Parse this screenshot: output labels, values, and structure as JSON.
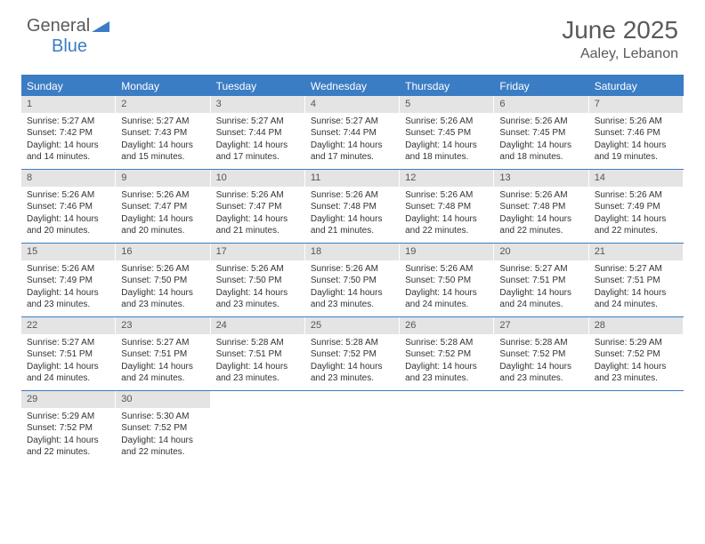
{
  "logo": {
    "general": "General",
    "blue": "Blue"
  },
  "title": "June 2025",
  "location": "Aaley, Lebanon",
  "colors": {
    "header_blue": "#3b7dc4",
    "daynum_bg": "#e4e4e4",
    "text_gray": "#5a5a5a"
  },
  "weekdays": [
    "Sunday",
    "Monday",
    "Tuesday",
    "Wednesday",
    "Thursday",
    "Friday",
    "Saturday"
  ],
  "weeks": [
    [
      {
        "n": "1",
        "sr": "Sunrise: 5:27 AM",
        "ss": "Sunset: 7:42 PM",
        "dl": "Daylight: 14 hours and 14 minutes."
      },
      {
        "n": "2",
        "sr": "Sunrise: 5:27 AM",
        "ss": "Sunset: 7:43 PM",
        "dl": "Daylight: 14 hours and 15 minutes."
      },
      {
        "n": "3",
        "sr": "Sunrise: 5:27 AM",
        "ss": "Sunset: 7:44 PM",
        "dl": "Daylight: 14 hours and 17 minutes."
      },
      {
        "n": "4",
        "sr": "Sunrise: 5:27 AM",
        "ss": "Sunset: 7:44 PM",
        "dl": "Daylight: 14 hours and 17 minutes."
      },
      {
        "n": "5",
        "sr": "Sunrise: 5:26 AM",
        "ss": "Sunset: 7:45 PM",
        "dl": "Daylight: 14 hours and 18 minutes."
      },
      {
        "n": "6",
        "sr": "Sunrise: 5:26 AM",
        "ss": "Sunset: 7:45 PM",
        "dl": "Daylight: 14 hours and 18 minutes."
      },
      {
        "n": "7",
        "sr": "Sunrise: 5:26 AM",
        "ss": "Sunset: 7:46 PM",
        "dl": "Daylight: 14 hours and 19 minutes."
      }
    ],
    [
      {
        "n": "8",
        "sr": "Sunrise: 5:26 AM",
        "ss": "Sunset: 7:46 PM",
        "dl": "Daylight: 14 hours and 20 minutes."
      },
      {
        "n": "9",
        "sr": "Sunrise: 5:26 AM",
        "ss": "Sunset: 7:47 PM",
        "dl": "Daylight: 14 hours and 20 minutes."
      },
      {
        "n": "10",
        "sr": "Sunrise: 5:26 AM",
        "ss": "Sunset: 7:47 PM",
        "dl": "Daylight: 14 hours and 21 minutes."
      },
      {
        "n": "11",
        "sr": "Sunrise: 5:26 AM",
        "ss": "Sunset: 7:48 PM",
        "dl": "Daylight: 14 hours and 21 minutes."
      },
      {
        "n": "12",
        "sr": "Sunrise: 5:26 AM",
        "ss": "Sunset: 7:48 PM",
        "dl": "Daylight: 14 hours and 22 minutes."
      },
      {
        "n": "13",
        "sr": "Sunrise: 5:26 AM",
        "ss": "Sunset: 7:48 PM",
        "dl": "Daylight: 14 hours and 22 minutes."
      },
      {
        "n": "14",
        "sr": "Sunrise: 5:26 AM",
        "ss": "Sunset: 7:49 PM",
        "dl": "Daylight: 14 hours and 22 minutes."
      }
    ],
    [
      {
        "n": "15",
        "sr": "Sunrise: 5:26 AM",
        "ss": "Sunset: 7:49 PM",
        "dl": "Daylight: 14 hours and 23 minutes."
      },
      {
        "n": "16",
        "sr": "Sunrise: 5:26 AM",
        "ss": "Sunset: 7:50 PM",
        "dl": "Daylight: 14 hours and 23 minutes."
      },
      {
        "n": "17",
        "sr": "Sunrise: 5:26 AM",
        "ss": "Sunset: 7:50 PM",
        "dl": "Daylight: 14 hours and 23 minutes."
      },
      {
        "n": "18",
        "sr": "Sunrise: 5:26 AM",
        "ss": "Sunset: 7:50 PM",
        "dl": "Daylight: 14 hours and 23 minutes."
      },
      {
        "n": "19",
        "sr": "Sunrise: 5:26 AM",
        "ss": "Sunset: 7:50 PM",
        "dl": "Daylight: 14 hours and 24 minutes."
      },
      {
        "n": "20",
        "sr": "Sunrise: 5:27 AM",
        "ss": "Sunset: 7:51 PM",
        "dl": "Daylight: 14 hours and 24 minutes."
      },
      {
        "n": "21",
        "sr": "Sunrise: 5:27 AM",
        "ss": "Sunset: 7:51 PM",
        "dl": "Daylight: 14 hours and 24 minutes."
      }
    ],
    [
      {
        "n": "22",
        "sr": "Sunrise: 5:27 AM",
        "ss": "Sunset: 7:51 PM",
        "dl": "Daylight: 14 hours and 24 minutes."
      },
      {
        "n": "23",
        "sr": "Sunrise: 5:27 AM",
        "ss": "Sunset: 7:51 PM",
        "dl": "Daylight: 14 hours and 24 minutes."
      },
      {
        "n": "24",
        "sr": "Sunrise: 5:28 AM",
        "ss": "Sunset: 7:51 PM",
        "dl": "Daylight: 14 hours and 23 minutes."
      },
      {
        "n": "25",
        "sr": "Sunrise: 5:28 AM",
        "ss": "Sunset: 7:52 PM",
        "dl": "Daylight: 14 hours and 23 minutes."
      },
      {
        "n": "26",
        "sr": "Sunrise: 5:28 AM",
        "ss": "Sunset: 7:52 PM",
        "dl": "Daylight: 14 hours and 23 minutes."
      },
      {
        "n": "27",
        "sr": "Sunrise: 5:28 AM",
        "ss": "Sunset: 7:52 PM",
        "dl": "Daylight: 14 hours and 23 minutes."
      },
      {
        "n": "28",
        "sr": "Sunrise: 5:29 AM",
        "ss": "Sunset: 7:52 PM",
        "dl": "Daylight: 14 hours and 23 minutes."
      }
    ],
    [
      {
        "n": "29",
        "sr": "Sunrise: 5:29 AM",
        "ss": "Sunset: 7:52 PM",
        "dl": "Daylight: 14 hours and 22 minutes."
      },
      {
        "n": "30",
        "sr": "Sunrise: 5:30 AM",
        "ss": "Sunset: 7:52 PM",
        "dl": "Daylight: 14 hours and 22 minutes."
      },
      null,
      null,
      null,
      null,
      null
    ]
  ]
}
